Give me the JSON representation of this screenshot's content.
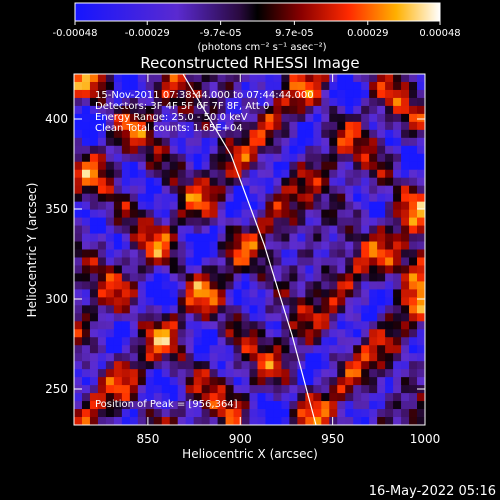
{
  "chart_data": {
    "type": "heatmap",
    "title": "Reconstructed RHESSI Image",
    "xlabel": "Heliocentric X (arcsec)",
    "ylabel": "Heliocentric Y (arcsec)",
    "xlim": [
      810,
      1000
    ],
    "ylim": [
      230,
      425
    ],
    "x_ticks": [
      850,
      900,
      950,
      1000
    ],
    "y_ticks": [
      250,
      300,
      350,
      400
    ],
    "colorbar": {
      "ticks": [
        "-0.00048",
        "-0.00029",
        "-9.7e-05",
        "9.7e-05",
        "0.00029",
        "0.00048"
      ],
      "tick_values": [
        -0.00048,
        -0.00029,
        -9.7e-05,
        9.7e-05,
        0.00029,
        0.00048
      ],
      "range": [
        -0.00048,
        0.00048
      ],
      "units": "(photons cm⁻² s⁻¹ asec⁻²)"
    },
    "annotations": [
      "15-Nov-2011 07:38:44.000 to 07:44:44.000",
      "Detectors: 3F 4F 5F 6F 7F 8F, Att 0",
      "Energy Range: 25.0 - 50.0 keV",
      "Clean     Total counts: 1.65E+04"
    ],
    "peak_label": "Position of Peak = [956,364]",
    "peak": {
      "x": 956,
      "y": 364
    },
    "limb_curve": {
      "points": [
        [
          869,
          425
        ],
        [
          895,
          380
        ],
        [
          913,
          330
        ],
        [
          928,
          280
        ],
        [
          941,
          230
        ]
      ]
    }
  },
  "footer": {
    "timestamp": "16-May-2022 05:16"
  }
}
